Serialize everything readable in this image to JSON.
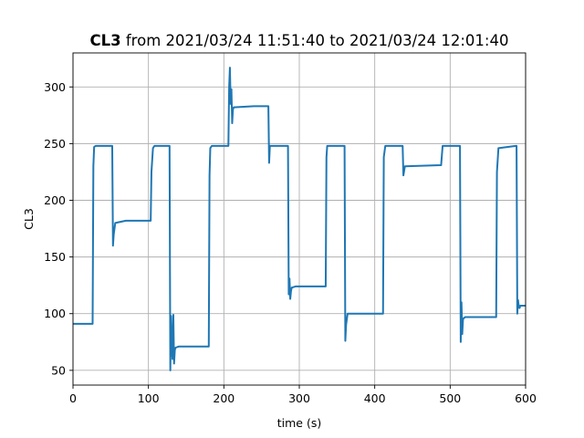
{
  "chart_data": {
    "type": "line",
    "title_bold": "CL3",
    "title_rest": " from 2021/03/24 11:51:40 to 2021/03/24 12:01:40",
    "xlabel": "time (s)",
    "ylabel": "CL3",
    "xlim": [
      0,
      600
    ],
    "ylim": [
      37,
      330
    ],
    "xticks": [
      0,
      100,
      200,
      300,
      400,
      500,
      600
    ],
    "yticks": [
      50,
      100,
      150,
      200,
      250,
      300
    ],
    "grid": true,
    "series_color": "#1f77b4",
    "series": [
      {
        "x": [
          0,
          26,
          27,
          28,
          30,
          52,
          53,
          54,
          56,
          70,
          103,
          104,
          106,
          108,
          128,
          129,
          130,
          131,
          132,
          133,
          134,
          135,
          136,
          140,
          155,
          180,
          181,
          182,
          184,
          206,
          207,
          208,
          209,
          210,
          211,
          212,
          213,
          240,
          259,
          260,
          261,
          262,
          285,
          286,
          287,
          288,
          289,
          290,
          295,
          335,
          336,
          337,
          339,
          360,
          361,
          362,
          364,
          410,
          411,
          412,
          414,
          436,
          437,
          438,
          440,
          487,
          488,
          490,
          512,
          513,
          514,
          515,
          516,
          517,
          518,
          520,
          560,
          561,
          562,
          564,
          587,
          588,
          589,
          590,
          591,
          592,
          593,
          595,
          600
        ],
        "y": [
          91,
          91,
          230,
          247,
          248,
          248,
          160,
          170,
          180,
          182,
          182,
          225,
          246,
          248,
          248,
          50,
          98,
          70,
          60,
          99,
          56,
          68,
          70,
          71,
          71,
          71,
          222,
          246,
          248,
          248,
          300,
          317,
          285,
          298,
          268,
          280,
          282,
          283,
          283,
          233,
          248,
          248,
          248,
          117,
          131,
          113,
          120,
          123,
          124,
          124,
          238,
          248,
          248,
          248,
          76,
          90,
          100,
          100,
          100,
          238,
          248,
          248,
          248,
          222,
          230,
          231,
          231,
          248,
          248,
          248,
          75,
          110,
          82,
          95,
          96,
          97,
          97,
          97,
          225,
          246,
          248,
          248,
          100,
          112,
          106,
          105,
          107,
          107,
          107
        ]
      }
    ]
  }
}
